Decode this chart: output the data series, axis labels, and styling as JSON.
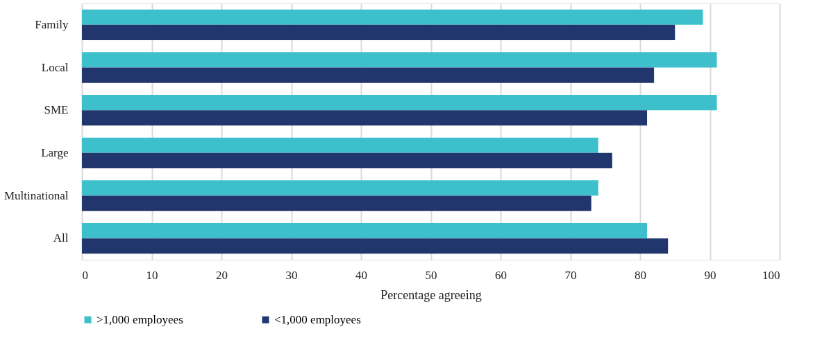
{
  "chart_data": {
    "type": "bar",
    "orientation": "horizontal",
    "xlabel": "Percentage agreeing",
    "categories": [
      "Family",
      "Local",
      "SME",
      "Large",
      "Multinational",
      "All"
    ],
    "series": [
      {
        "name": ">1,000 employees",
        "color": "#3dc0cb",
        "values": [
          89,
          91,
          91,
          74,
          74,
          81
        ]
      },
      {
        "name": "<1,000 employees",
        "color": "#22366e",
        "values": [
          85,
          82,
          81,
          76,
          73,
          84
        ]
      }
    ],
    "xlim": [
      0,
      100
    ],
    "xticks": [
      0,
      10,
      20,
      30,
      40,
      50,
      60,
      70,
      80,
      90,
      100
    ],
    "grid": "x",
    "legend": "bottom"
  }
}
